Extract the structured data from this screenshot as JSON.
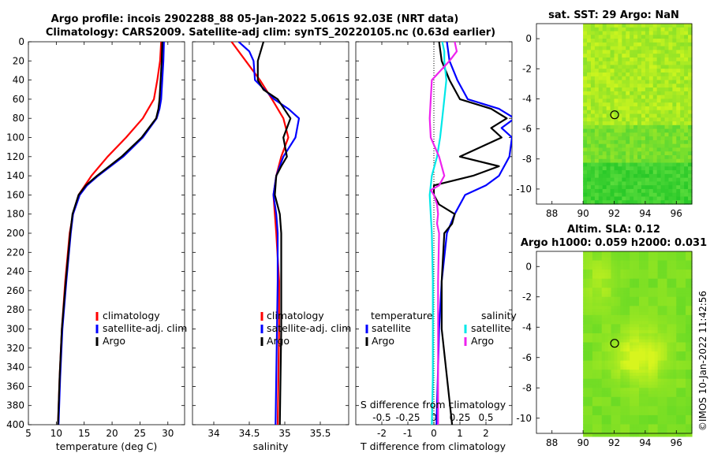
{
  "header": {
    "title_line1": "Argo profile: incois 2902288_88 05-Jan-2022 5.061S 92.03E (NRT data)",
    "title_line2": "Climatology: CARS2009. Satellite-adj clim: synTS_20220105.nc (0.63d earlier)"
  },
  "colors": {
    "climatology": "#ff0000",
    "satellite": "#0000ff",
    "argo": "#000000",
    "s_satellite": "#00e8e8",
    "s_argo": "#ee22ee"
  },
  "legend": {
    "climatology": "climatology",
    "satellite_adj": "satellite-adj. clim",
    "argo": "Argo",
    "temperature_head": "temperature",
    "salinity_head": "salinity",
    "satellite": "satellite"
  },
  "credit": "©IMOS 10-Jan-2022 11:42:56",
  "chart_data": [
    {
      "id": "temperature",
      "type": "line",
      "xlabel": "temperature (deg C)",
      "ylabel": "",
      "xlim": [
        5,
        33
      ],
      "ylim": [
        400,
        0
      ],
      "xticks": [
        "5",
        "10",
        "15",
        "20",
        "25",
        "30"
      ],
      "xtick_values": [
        5,
        10,
        15,
        20,
        25,
        30
      ],
      "yticks": [
        "0",
        "20",
        "40",
        "60",
        "80",
        "100",
        "120",
        "140",
        "160",
        "180",
        "200",
        "220",
        "240",
        "260",
        "280",
        "300",
        "320",
        "340",
        "360",
        "380",
        "400"
      ],
      "series": [
        {
          "name": "climatology",
          "depth": [
            0,
            20,
            40,
            60,
            80,
            100,
            120,
            140,
            160,
            180,
            200,
            250,
            300,
            350,
            400
          ],
          "values": [
            28.8,
            28.6,
            28.1,
            27.5,
            25.5,
            22.5,
            19.2,
            16.3,
            14.0,
            13.0,
            12.4,
            11.6,
            11.0,
            10.6,
            10.3
          ]
        },
        {
          "name": "satellite-adj. clim",
          "depth": [
            0,
            20,
            40,
            60,
            70,
            80,
            100,
            120,
            140,
            150,
            160,
            180,
            200,
            250,
            300,
            350,
            400
          ],
          "values": [
            29.3,
            29.2,
            29.0,
            28.8,
            28.5,
            28.0,
            25.5,
            22.0,
            17.5,
            15.5,
            14.2,
            13.0,
            12.6,
            11.8,
            11.1,
            10.7,
            10.4
          ]
        },
        {
          "name": "Argo",
          "depth": [
            0,
            20,
            40,
            60,
            70,
            80,
            100,
            120,
            140,
            150,
            160,
            180,
            200,
            250,
            300,
            350,
            400
          ],
          "values": [
            29.0,
            28.9,
            28.7,
            28.5,
            28.3,
            27.9,
            25.3,
            21.7,
            17.3,
            15.3,
            14.0,
            12.9,
            12.5,
            11.7,
            11.0,
            10.6,
            10.3
          ]
        }
      ]
    },
    {
      "id": "salinity",
      "type": "line",
      "xlabel": "salinity",
      "xlim": [
        33.7,
        35.9
      ],
      "ylim": [
        400,
        0
      ],
      "xticks": [
        "34",
        "34.5",
        "35",
        "35.5"
      ],
      "xtick_values": [
        34,
        34.5,
        35,
        35.5
      ],
      "series": [
        {
          "name": "climatology",
          "depth": [
            0,
            20,
            40,
            60,
            80,
            100,
            120,
            140,
            160,
            180,
            200,
            250,
            300,
            350,
            400
          ],
          "values": [
            34.25,
            34.45,
            34.65,
            34.82,
            34.98,
            35.05,
            34.95,
            34.88,
            34.84,
            34.86,
            34.88,
            34.92,
            34.92,
            34.91,
            34.9
          ]
        },
        {
          "name": "satellite-adj. clim",
          "depth": [
            0,
            10,
            20,
            40,
            60,
            70,
            80,
            100,
            120,
            140,
            160,
            180,
            200,
            250,
            300,
            350,
            400
          ],
          "values": [
            34.35,
            34.5,
            34.56,
            34.58,
            34.85,
            35.05,
            35.2,
            35.15,
            34.98,
            34.88,
            34.84,
            34.88,
            34.9,
            34.9,
            34.89,
            34.88,
            34.87
          ]
        },
        {
          "name": "Argo",
          "depth": [
            0,
            10,
            20,
            40,
            50,
            60,
            80,
            100,
            120,
            130,
            140,
            160,
            180,
            200,
            250,
            300,
            350,
            400
          ],
          "values": [
            34.7,
            34.66,
            34.62,
            34.62,
            34.7,
            34.9,
            35.08,
            34.98,
            35.03,
            34.95,
            34.88,
            34.86,
            34.93,
            34.95,
            34.95,
            34.95,
            34.94,
            34.93
          ]
        }
      ]
    },
    {
      "id": "difference",
      "type": "line",
      "xlabel": "T difference from climatology",
      "xlabel2": "S difference from climatology",
      "xlim": [
        -3,
        3
      ],
      "ylim": [
        400,
        0
      ],
      "xticks": [
        "-2",
        "-1",
        "0",
        "1",
        "2"
      ],
      "xtick_values": [
        -2,
        -1,
        0,
        1,
        2
      ],
      "s_xticks": [
        "-0.5",
        "-0.25",
        "0",
        "0.25",
        "0.5"
      ],
      "s_xtick_values": [
        -0.5,
        -0.25,
        0,
        0.25,
        0.5
      ],
      "s_xlim": [
        -0.75,
        0.75
      ],
      "series": [
        {
          "name": "temperature satellite",
          "depth": [
            0,
            20,
            40,
            60,
            70,
            80,
            90,
            100,
            120,
            140,
            150,
            160,
            180,
            200,
            250,
            300,
            350,
            400
          ],
          "values": [
            0.5,
            0.6,
            0.9,
            1.3,
            2.5,
            3.1,
            2.6,
            3.0,
            2.9,
            2.5,
            2.0,
            1.2,
            0.8,
            0.5,
            0.3,
            0.2,
            0.15,
            0.1
          ]
        },
        {
          "name": "temperature Argo",
          "depth": [
            0,
            20,
            40,
            60,
            70,
            80,
            90,
            100,
            120,
            130,
            140,
            150,
            160,
            170,
            180,
            190,
            200,
            250,
            300,
            350,
            400
          ],
          "values": [
            0.2,
            0.3,
            0.6,
            1.0,
            2.2,
            2.8,
            2.2,
            2.6,
            1.0,
            2.5,
            1.5,
            0.0,
            0.0,
            0.2,
            0.8,
            0.7,
            0.4,
            0.3,
            0.3,
            0.5,
            0.7
          ]
        },
        {
          "name": "salinity satellite",
          "depth": [
            0,
            10,
            20,
            40,
            60,
            80,
            100,
            120,
            140,
            160,
            180,
            200,
            250,
            300,
            350,
            400
          ],
          "values": [
            0.08,
            0.1,
            0.1,
            0.12,
            0.1,
            0.08,
            0.06,
            0.03,
            -0.02,
            -0.04,
            -0.03,
            -0.02,
            -0.01,
            -0.01,
            -0.01,
            -0.02
          ]
        },
        {
          "name": "salinity Argo",
          "depth": [
            0,
            10,
            20,
            40,
            60,
            80,
            100,
            120,
            140,
            150,
            155,
            160,
            170,
            180,
            190,
            200,
            250,
            300,
            350,
            400
          ],
          "values": [
            0.2,
            0.22,
            0.15,
            -0.02,
            -0.03,
            -0.04,
            -0.03,
            0.05,
            0.1,
            0.05,
            -0.03,
            0.0,
            0.03,
            0.04,
            0.03,
            0.05,
            0.04,
            0.04,
            0.04,
            0.04
          ]
        }
      ]
    },
    {
      "id": "sst_map",
      "type": "heatmap",
      "title": "sat. SST: 29 Argo: NaN",
      "xlim": [
        87,
        97
      ],
      "ylim": [
        -11,
        1
      ],
      "xticks": [
        "88",
        "90",
        "92",
        "94",
        "96"
      ],
      "xtick_values": [
        88,
        90,
        92,
        94,
        96
      ],
      "yticks": [
        "0",
        "-2",
        "-4",
        "-6",
        "-8",
        "-10"
      ],
      "ytick_values": [
        0,
        -2,
        -4,
        -6,
        -8,
        -10
      ],
      "data_extent_lon": [
        90,
        97
      ],
      "argo_position": [
        92.03,
        -5.061
      ]
    },
    {
      "id": "sla_map",
      "type": "heatmap",
      "title": "Altim. SLA: 0.12",
      "subtitle": "Argo h1000: 0.059 h2000: 0.031",
      "xlim": [
        87,
        97
      ],
      "ylim": [
        -11,
        1
      ],
      "xticks": [
        "88",
        "90",
        "92",
        "94",
        "96"
      ],
      "xtick_values": [
        88,
        90,
        92,
        94,
        96
      ],
      "yticks": [
        "0",
        "-2",
        "-4",
        "-6",
        "-8",
        "-10"
      ],
      "ytick_values": [
        0,
        -2,
        -4,
        -6,
        -8,
        -10
      ],
      "data_extent_lon": [
        90,
        97
      ],
      "argo_position": [
        92.03,
        -5.061
      ]
    }
  ]
}
